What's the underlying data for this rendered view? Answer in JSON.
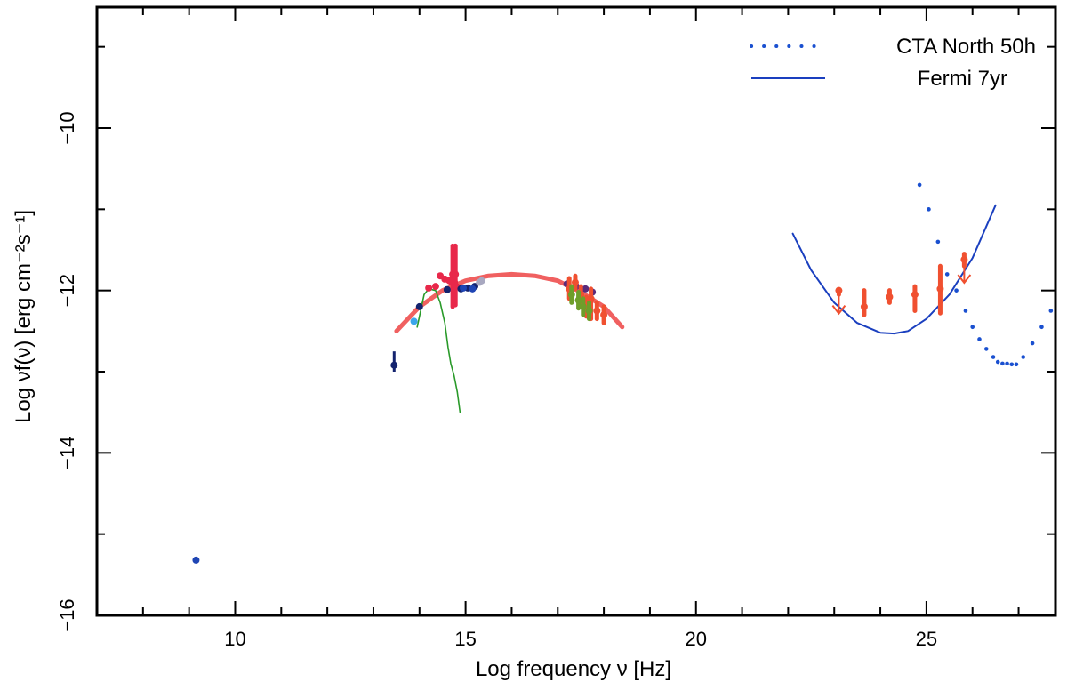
{
  "colors": {
    "sync_fit": "#f06060",
    "cta": "#1a50d0",
    "fermi": "#1a3fbf",
    "host": "#2a9a2a",
    "data_red": "#e8284a",
    "data_orange": "#f05030",
    "data_navy": "#14236e",
    "data_blue": "#1f45b4",
    "data_lightblue": "#3aa6ea",
    "data_grey": "#a8a8c0",
    "data_olive": "#6e9e2a",
    "data_purple": "#5a2a7a"
  },
  "chart_data": {
    "type": "scatter",
    "xlabel": "Log   frequency ν [Hz]",
    "ylabel": "Log   νf(ν) [erg cm⁻²s⁻¹]",
    "xlim": [
      7,
      27.8
    ],
    "ylim": [
      -16,
      -10
    ],
    "x_ticks": [
      10,
      15,
      20,
      25
    ],
    "x_minor_ticks": [
      8,
      9,
      11,
      12,
      13,
      14,
      16,
      17,
      18,
      19,
      21,
      22,
      23,
      24,
      26,
      27
    ],
    "y_ticks": [
      -16,
      -14,
      -12,
      -10
    ],
    "y_minor_ticks": [
      -15,
      -13,
      -11,
      -9
    ],
    "legend": {
      "position": "top-right",
      "entries": [
        {
          "label": "CTA North 50h",
          "style": "dotted"
        },
        {
          "label": "Fermi 7yr",
          "style": "solid"
        }
      ]
    },
    "series": [
      {
        "name": "CTA North 50h",
        "kind": "dotted-curve",
        "color_key": "cta",
        "x": [
          24.85,
          25.05,
          25.25,
          25.45,
          25.65,
          25.85,
          26.0,
          26.15,
          26.3,
          26.45,
          26.55,
          26.65,
          26.75,
          26.85,
          26.95,
          27.1,
          27.3,
          27.5,
          27.7
        ],
        "y": [
          -10.7,
          -11.0,
          -11.4,
          -11.8,
          -12.0,
          -12.25,
          -12.45,
          -12.6,
          -12.72,
          -12.82,
          -12.88,
          -12.9,
          -12.9,
          -12.91,
          -12.91,
          -12.82,
          -12.65,
          -12.45,
          -12.25
        ]
      },
      {
        "name": "Fermi 7yr",
        "kind": "line",
        "color_key": "fermi",
        "x": [
          22.1,
          22.5,
          23.0,
          23.5,
          24.0,
          24.3,
          24.6,
          25.0,
          25.5,
          26.0,
          26.5
        ],
        "y": [
          -11.3,
          -11.75,
          -12.15,
          -12.4,
          -12.52,
          -12.53,
          -12.5,
          -12.35,
          -12.05,
          -11.6,
          -10.95
        ]
      },
      {
        "kind": "fit-line",
        "color_key": "sync_fit",
        "x": [
          13.5,
          14.0,
          14.5,
          15.0,
          15.5,
          16.0,
          16.5,
          17.0,
          17.5,
          18.0,
          18.4
        ],
        "y": [
          -12.5,
          -12.2,
          -12.0,
          -11.88,
          -11.82,
          -11.8,
          -11.82,
          -11.88,
          -12.02,
          -12.2,
          -12.45
        ]
      },
      {
        "kind": "line",
        "color_key": "host",
        "x": [
          13.95,
          14.1,
          14.2,
          14.35,
          14.45,
          14.55,
          14.62,
          14.68,
          14.75,
          14.82,
          14.88
        ],
        "y": [
          -12.45,
          -12.05,
          -11.98,
          -12.0,
          -12.15,
          -12.4,
          -12.7,
          -12.9,
          -13.05,
          -13.25,
          -13.5
        ]
      },
      {
        "kind": "errorbar",
        "color_key": "data_orange",
        "points": [
          {
            "x": 23.1,
            "y": -12.0,
            "ylo": -12.05,
            "yhi": -12.0,
            "upper_limit": true
          },
          {
            "x": 23.65,
            "y": -12.2,
            "ylo": -12.3,
            "yhi": -12.0
          },
          {
            "x": 24.2,
            "y": -12.08,
            "ylo": -12.15,
            "yhi": -12.0
          },
          {
            "x": 24.75,
            "y": -12.05,
            "ylo": -12.25,
            "yhi": -11.95
          },
          {
            "x": 25.3,
            "y": -11.98,
            "ylo": -12.28,
            "yhi": -11.7
          },
          {
            "x": 25.82,
            "y": -11.62,
            "ylo": -11.7,
            "yhi": -11.55,
            "upper_limit": true
          }
        ]
      },
      {
        "kind": "errorbar",
        "color_key": "data_red",
        "points": [
          {
            "x": 14.72,
            "y": -11.8,
            "ylo": -12.2,
            "yhi": -11.45
          },
          {
            "x": 14.78,
            "y": -11.8,
            "ylo": -12.18,
            "yhi": -11.45
          },
          {
            "x": 14.76,
            "y": -11.9,
            "ylo": -12.15,
            "yhi": -11.5
          }
        ]
      },
      {
        "kind": "points",
        "color_key": "data_red",
        "points": [
          {
            "x": 14.2,
            "y": -11.97
          },
          {
            "x": 14.35,
            "y": -11.95
          },
          {
            "x": 14.45,
            "y": -11.82
          },
          {
            "x": 14.55,
            "y": -11.86
          },
          {
            "x": 14.65,
            "y": -11.88
          },
          {
            "x": 14.7,
            "y": -11.9
          },
          {
            "x": 14.8,
            "y": -11.95
          },
          {
            "x": 14.75,
            "y": -12.0
          }
        ]
      },
      {
        "kind": "points",
        "color_key": "data_navy",
        "points": [
          {
            "x": 13.45,
            "y": -12.92
          },
          {
            "x": 14.0,
            "y": -12.2
          },
          {
            "x": 14.6,
            "y": -11.99
          },
          {
            "x": 14.9,
            "y": -11.98
          },
          {
            "x": 15.05,
            "y": -11.97
          },
          {
            "x": 15.2,
            "y": -11.95
          }
        ],
        "errors": [
          {
            "x": 13.45,
            "ylo": -13.0,
            "yhi": -12.75
          }
        ]
      },
      {
        "kind": "points",
        "color_key": "data_blue",
        "points": [
          {
            "x": 9.15,
            "y": -15.32
          },
          {
            "x": 14.95,
            "y": -11.97
          },
          {
            "x": 15.15,
            "y": -11.98
          }
        ]
      },
      {
        "kind": "points",
        "color_key": "data_lightblue",
        "points": [
          {
            "x": 13.88,
            "y": -12.38
          }
        ]
      },
      {
        "kind": "points",
        "color_key": "data_grey",
        "points": [
          {
            "x": 15.3,
            "y": -11.9
          },
          {
            "x": 15.35,
            "y": -11.88
          }
        ]
      },
      {
        "kind": "points",
        "color_key": "data_purple",
        "points": [
          {
            "x": 17.2,
            "y": -11.92
          },
          {
            "x": 17.4,
            "y": -11.95
          },
          {
            "x": 17.6,
            "y": -11.98
          },
          {
            "x": 17.75,
            "y": -12.02
          }
        ]
      },
      {
        "kind": "errorbar",
        "color_key": "data_orange",
        "points": [
          {
            "x": 17.25,
            "y": -11.98,
            "ylo": -12.1,
            "yhi": -11.85
          },
          {
            "x": 17.38,
            "y": -11.9,
            "ylo": -11.98,
            "yhi": -11.82
          },
          {
            "x": 17.5,
            "y": -12.05,
            "ylo": -12.2,
            "yhi": -11.95
          },
          {
            "x": 17.62,
            "y": -12.2,
            "ylo": -12.32,
            "yhi": -12.08
          },
          {
            "x": 17.72,
            "y": -12.1,
            "ylo": -12.35,
            "yhi": -11.98
          },
          {
            "x": 17.85,
            "y": -12.25,
            "ylo": -12.35,
            "yhi": -12.15
          },
          {
            "x": 18.0,
            "y": -12.3,
            "ylo": -12.4,
            "yhi": -12.2
          }
        ]
      },
      {
        "kind": "errorbar",
        "color_key": "data_olive",
        "points": [
          {
            "x": 17.3,
            "y": -12.05,
            "ylo": -12.15,
            "yhi": -11.95
          },
          {
            "x": 17.45,
            "y": -12.12,
            "ylo": -12.22,
            "yhi": -12.02
          },
          {
            "x": 17.55,
            "y": -12.2,
            "ylo": -12.3,
            "yhi": -12.1
          },
          {
            "x": 17.68,
            "y": -12.25,
            "ylo": -12.35,
            "yhi": -12.15
          }
        ]
      }
    ]
  }
}
